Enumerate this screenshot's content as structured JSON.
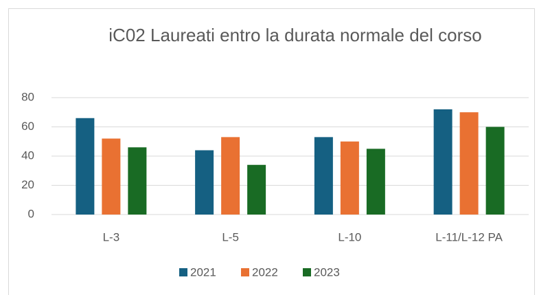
{
  "chart_data": {
    "type": "bar",
    "title": "iC02 Laureati entro la durata normale del corso",
    "categories": [
      "L-3",
      "L-5",
      "L-10",
      "L-11/L-12 PA"
    ],
    "series": [
      {
        "name": "2021",
        "color": "#156082",
        "values": [
          66,
          44,
          53,
          72
        ]
      },
      {
        "name": "2022",
        "color": "#e97132",
        "values": [
          52,
          53,
          50,
          70
        ]
      },
      {
        "name": "2023",
        "color": "#196b24",
        "values": [
          46,
          34,
          45,
          60
        ]
      }
    ],
    "ylim": [
      0,
      80
    ],
    "yticks": [
      0,
      20,
      40,
      60,
      80
    ],
    "grid": true,
    "legend": "bottom"
  }
}
